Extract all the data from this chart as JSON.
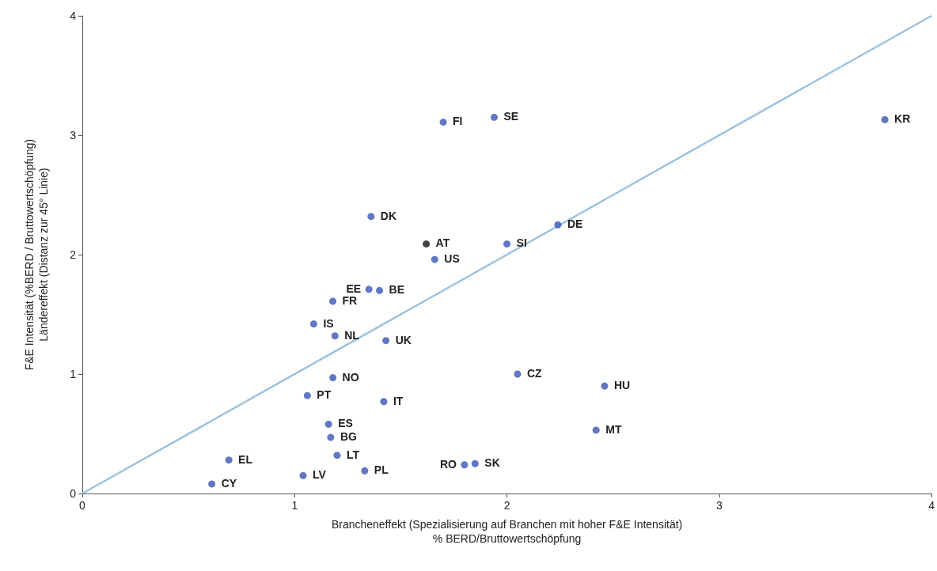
{
  "chart_data": {
    "type": "scatter",
    "xlabel": "Brancheneffekt (Spezialisierung auf Branchen mit hoher F&E Intensität)\n% BERD/Bruttowertschöpfung",
    "ylabel": "F&E Intensität (%BERD / Bruttowertschöpfung)\nLändereffekt (Distanz zur 45° Linie)",
    "xlim": [
      0,
      4
    ],
    "xticks": [
      0,
      1,
      2,
      3,
      4
    ],
    "ylim": [
      0,
      4
    ],
    "yticks": [
      0,
      1,
      2,
      3,
      4
    ],
    "grid": false,
    "marker": "circle",
    "series": [
      {
        "type": "line",
        "color": "#9cc3e0",
        "marker": "none",
        "x": [
          0,
          4
        ],
        "values": [
          0,
          4
        ]
      },
      {
        "x": [
          1.7,
          1.94,
          3.78,
          1.36,
          1.62,
          2.0,
          2.24,
          1.66,
          1.35,
          1.4,
          1.18,
          1.09,
          1.19,
          1.43,
          1.18,
          2.05,
          2.46,
          1.06,
          1.42,
          2.42,
          1.16,
          1.17,
          1.2,
          0.69,
          1.8,
          1.85,
          1.33,
          1.04,
          0.61
        ],
        "values": [
          3.11,
          3.15,
          3.13,
          2.32,
          2.09,
          2.09,
          2.25,
          1.96,
          1.71,
          1.7,
          1.61,
          1.42,
          1.32,
          1.28,
          0.97,
          1.0,
          0.9,
          0.82,
          0.77,
          0.53,
          0.58,
          0.47,
          0.32,
          0.28,
          0.24,
          0.25,
          0.19,
          0.15,
          0.08
        ],
        "colors": [
          "#3a55b4",
          "#3a55b4",
          "#3a55b4",
          "#3a55b4",
          "#111111",
          "#3a55b4",
          "#3a55b4",
          "#3a55b4",
          "#3a55b4",
          "#3a55b4",
          "#3a55b4",
          "#3a55b4",
          "#3a55b4",
          "#3a55b4",
          "#3a55b4",
          "#3a55b4",
          "#3a55b4",
          "#3a55b4",
          "#3a55b4",
          "#3a55b4",
          "#3a55b4",
          "#3a55b4",
          "#3a55b4",
          "#3a55b4",
          "#3a55b4",
          "#3a55b4",
          "#3a55b4",
          "#3a55b4",
          "#3a55b4"
        ]
      }
    ],
    "annotations": [
      {
        "text": "FI",
        "x": 1.7,
        "y": 3.11
      },
      {
        "text": "SE",
        "x": 1.94,
        "y": 3.15
      },
      {
        "text": "KR",
        "x": 3.78,
        "y": 3.13
      },
      {
        "text": "DK",
        "x": 1.36,
        "y": 2.32
      },
      {
        "text": "AT",
        "x": 1.62,
        "y": 2.09
      },
      {
        "text": "SI",
        "x": 2.0,
        "y": 2.09
      },
      {
        "text": "DE",
        "x": 2.24,
        "y": 2.25
      },
      {
        "text": "US",
        "x": 1.66,
        "y": 1.96
      },
      {
        "text": "EE",
        "x": 1.35,
        "y": 1.71
      },
      {
        "text": "BE",
        "x": 1.4,
        "y": 1.7
      },
      {
        "text": "FR",
        "x": 1.18,
        "y": 1.61
      },
      {
        "text": "IS",
        "x": 1.09,
        "y": 1.42
      },
      {
        "text": "NL",
        "x": 1.19,
        "y": 1.32
      },
      {
        "text": "UK",
        "x": 1.43,
        "y": 1.28
      },
      {
        "text": "NO",
        "x": 1.18,
        "y": 0.97
      },
      {
        "text": "CZ",
        "x": 2.05,
        "y": 1.0
      },
      {
        "text": "HU",
        "x": 2.46,
        "y": 0.9
      },
      {
        "text": "PT",
        "x": 1.06,
        "y": 0.82
      },
      {
        "text": "IT",
        "x": 1.42,
        "y": 0.77
      },
      {
        "text": "MT",
        "x": 2.42,
        "y": 0.53
      },
      {
        "text": "ES",
        "x": 1.16,
        "y": 0.58
      },
      {
        "text": "BG",
        "x": 1.17,
        "y": 0.47
      },
      {
        "text": "LT",
        "x": 1.2,
        "y": 0.32
      },
      {
        "text": "EL",
        "x": 0.69,
        "y": 0.28
      },
      {
        "text": "RO",
        "x": 1.8,
        "y": 0.24
      },
      {
        "text": "SK",
        "x": 1.85,
        "y": 0.25
      },
      {
        "text": "PL",
        "x": 1.33,
        "y": 0.19
      },
      {
        "text": "LV",
        "x": 1.04,
        "y": 0.15
      },
      {
        "text": "CY",
        "x": 0.61,
        "y": 0.08
      }
    ]
  }
}
